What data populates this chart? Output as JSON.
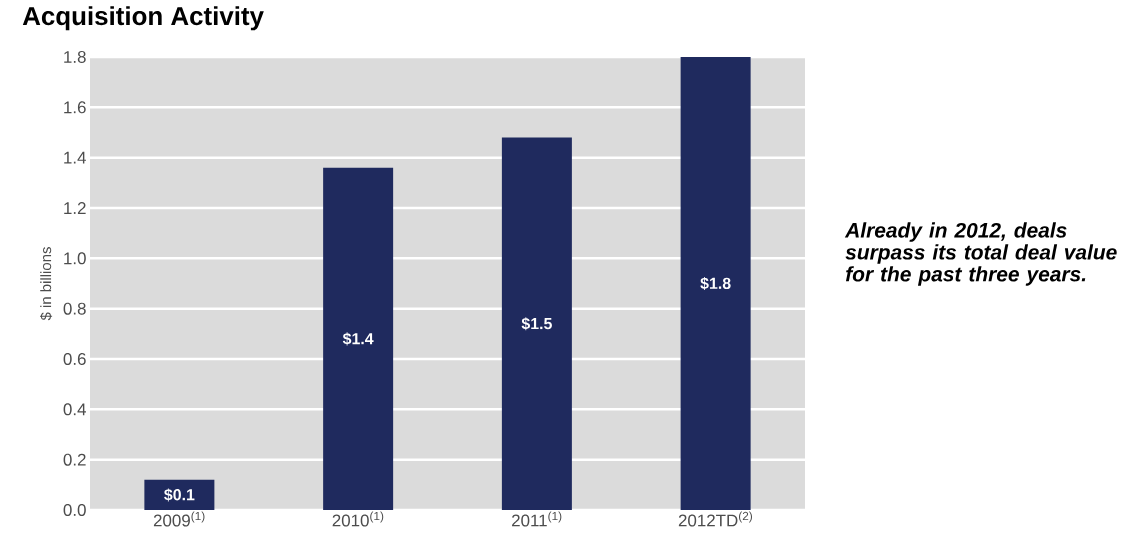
{
  "chart_data": {
    "type": "bar",
    "title": "Acquisition Activity",
    "ylabel": "$ in billions",
    "categories": [
      "2009$^{(1)}$",
      "2010$^{(1)}$",
      "2011$^{(1)}$",
      "2012TD$^{(2)}$"
    ],
    "values": [
      0.12,
      1.36,
      1.48,
      1.8
    ],
    "value_labels": [
      "$0.1",
      "$1.4",
      "$1.5",
      "$1.8"
    ],
    "color": "#1f2a5e",
    "ylim": [
      0,
      1.8
    ],
    "yticks": [
      {
        "value": 0,
        "label": "0.0"
      },
      0.2,
      0.4,
      0.6,
      0.8,
      {
        "value": 1,
        "label": "1.0"
      },
      1.2,
      1.4,
      1.6,
      1.8
    ],
    "grid": "y",
    "annotations": [
      "Already in 2012, deals surpass its total deal value for the past three years."
    ]
  }
}
